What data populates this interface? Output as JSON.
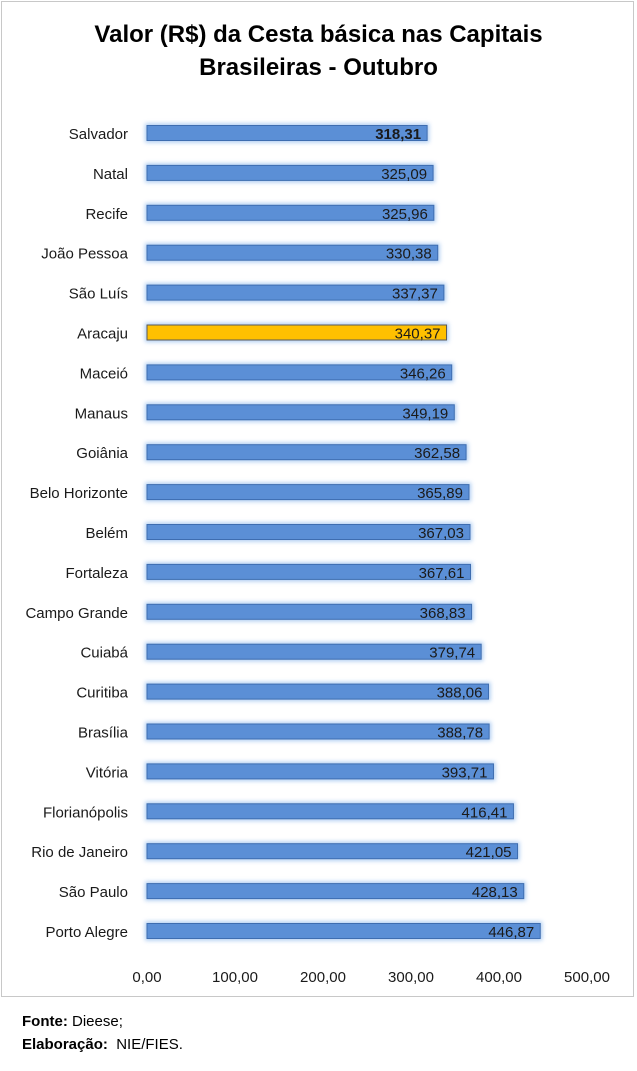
{
  "chart_data": {
    "type": "bar",
    "orientation": "horizontal",
    "title_line1": "Valor (R$) da Cesta básica nas Capitais",
    "title_line2": "Brasileiras - Outubro",
    "categories": [
      "Salvador",
      "Natal",
      "Recife",
      "João Pessoa",
      "São Luís",
      "Aracaju",
      "Maceió",
      "Manaus",
      "Goiânia",
      "Belo Horizonte",
      "Belém",
      "Fortaleza",
      "Campo Grande",
      "Cuiabá",
      "Curitiba",
      "Brasília",
      "Vitória",
      "Florianópolis",
      "Rio de Janeiro",
      "São Paulo",
      "Porto Alegre"
    ],
    "values": [
      318.31,
      325.09,
      325.96,
      330.38,
      337.37,
      340.37,
      346.26,
      349.19,
      362.58,
      365.89,
      367.03,
      367.61,
      368.83,
      379.74,
      388.06,
      388.78,
      393.71,
      416.41,
      421.05,
      428.13,
      446.87
    ],
    "value_labels": [
      "318,31",
      "325,09",
      "325,96",
      "330,38",
      "337,37",
      "340,37",
      "346,26",
      "349,19",
      "362,58",
      "365,89",
      "367,03",
      "367,61",
      "368,83",
      "379,74",
      "388,06",
      "388,78",
      "393,71",
      "416,41",
      "421,05",
      "428,13",
      "446,87"
    ],
    "bold_label_index": 0,
    "highlight_index": 5,
    "bar_color": "#5b8fd6",
    "highlight_color": "#ffc000",
    "xlim": [
      0,
      500
    ],
    "x_ticks": [
      0,
      100,
      200,
      300,
      400,
      500
    ],
    "x_tick_labels": [
      "0,00",
      "100,00",
      "200,00",
      "300,00",
      "400,00",
      "500,00"
    ],
    "grid": false,
    "legend": "none"
  },
  "footer": {
    "source_label": "Fonte:",
    "source_value": " Dieese;",
    "made_label": "Elaboração:",
    "made_value": "  NIE/FIES."
  }
}
